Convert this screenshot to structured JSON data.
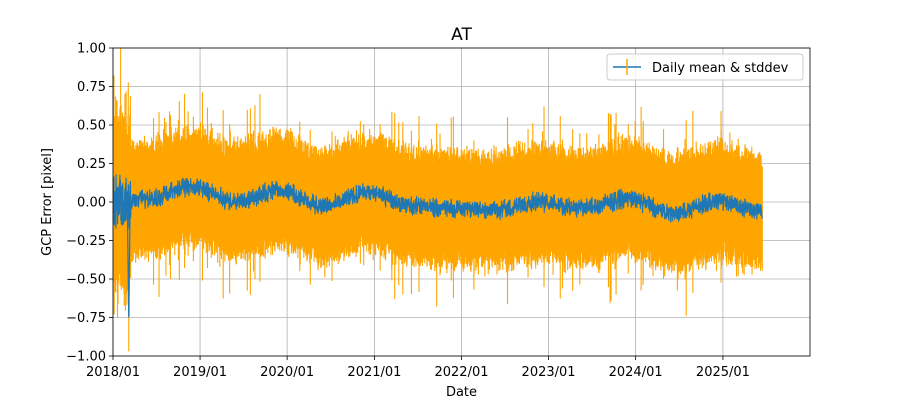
{
  "chart_data": {
    "type": "line",
    "title": "AT",
    "xlabel": "Date",
    "ylabel": "GCP Error [pixel]",
    "grid": true,
    "legend_position": "top-right",
    "x_tick_labels": [
      "2018/01",
      "2019/01",
      "2020/01",
      "2021/01",
      "2022/01",
      "2023/01",
      "2024/01",
      "2025/01"
    ],
    "x_ticks": [
      "2018-01-01",
      "2019-01-01",
      "2020-01-01",
      "2021-01-01",
      "2022-01-01",
      "2023-01-01",
      "2024-01-01",
      "2025-01-01"
    ],
    "xlim": [
      "2018-01-01",
      "2026-01-01"
    ],
    "x_data_range": [
      "2018-01-01",
      "2025-06-15"
    ],
    "y_ticks": [
      -1.0,
      -0.75,
      -0.5,
      -0.25,
      0.0,
      0.25,
      0.5,
      0.75,
      1.0
    ],
    "y_tick_labels": [
      "−1.00",
      "−0.75",
      "−0.50",
      "−0.25",
      "0.00",
      "0.25",
      "0.50",
      "0.75",
      "1.00"
    ],
    "ylim": [
      -1.0,
      1.0
    ],
    "series": [
      {
        "name": "Daily mean & stddev",
        "color": "#1f77b4",
        "errorbar_color": "#ffa500",
        "mean_anchor_x": [
          "2018-01-01",
          "2018-06-01",
          "2018-12-01",
          "2019-06-01",
          "2019-12-01",
          "2020-06-01",
          "2020-12-01",
          "2021-06-01",
          "2021-12-01",
          "2022-06-01",
          "2022-12-01",
          "2023-06-01",
          "2023-12-01",
          "2024-06-01",
          "2024-12-01",
          "2025-06-15"
        ],
        "mean_anchor_y": [
          0.0,
          0.02,
          0.1,
          0.0,
          0.08,
          -0.03,
          0.06,
          -0.02,
          -0.04,
          -0.05,
          0.0,
          -0.04,
          0.02,
          -0.07,
          0.0,
          -0.05
        ],
        "typical_stddev": 0.32,
        "min_observed": -0.97,
        "max_observed": 1.0
      }
    ]
  }
}
